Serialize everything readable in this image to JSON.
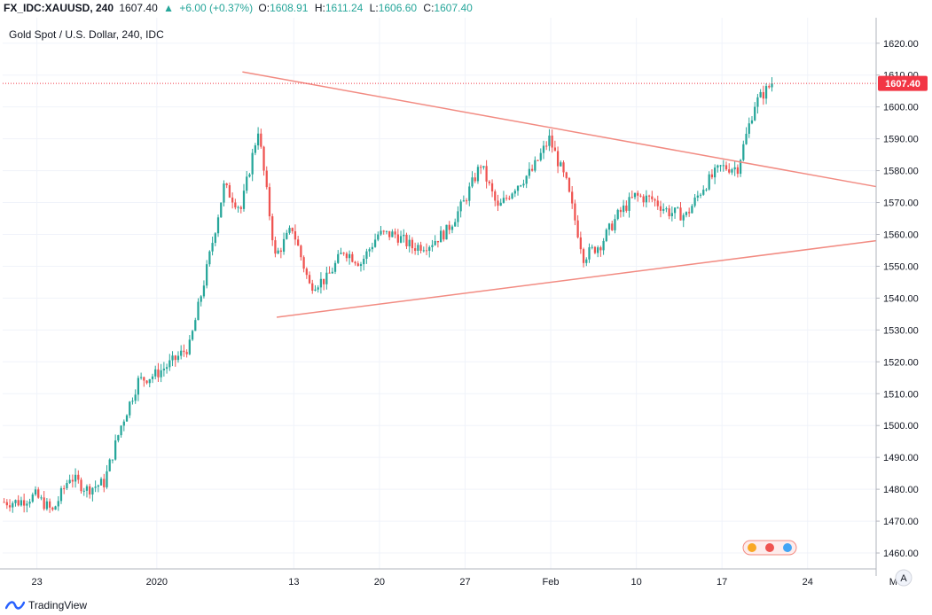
{
  "header": {
    "symbol": "FX_IDC:XAUUSD, 240",
    "last": "1607.40",
    "change_arrow": "▲",
    "change": "+6.00 (+0.37%)",
    "o_label": "O:",
    "o_value": "1608.91",
    "h_label": "H:",
    "h_value": "1611.24",
    "l_label": "L:",
    "l_value": "1606.60",
    "c_label": "C:",
    "c_value": "1607.40"
  },
  "chart_title": "Gold Spot / U.S. Dollar, 240, IDC",
  "price_label": "1607.40",
  "footer": {
    "brand": "TradingView"
  },
  "scale_mode": "A",
  "icons": {
    "logo": "tradingview-logo-icon",
    "scale": "auto-scale-icon",
    "events": "economic-events-icon"
  },
  "colors": {
    "up": "#26a69a",
    "down": "#ef5350",
    "trendline": "#f28b82",
    "last_price": "#f23645",
    "grid": "#f0f3fa"
  },
  "chart_data": {
    "type": "candlestick",
    "title": "Gold Spot / U.S. Dollar, 240, IDC",
    "ylim": [
      1455,
      1628
    ],
    "y_ticks": [
      1460,
      1470,
      1480,
      1490,
      1500,
      1510,
      1520,
      1530,
      1540,
      1550,
      1560,
      1570,
      1580,
      1590,
      1600,
      1610,
      1620
    ],
    "x_ticks": [
      "23",
      "2020",
      "13",
      "20",
      "27",
      "Feb",
      "10",
      "17",
      "24",
      "M"
    ],
    "x_start": "2019-12-19",
    "bars_per_day": 6,
    "trading_day_count": 45,
    "anchors": [
      [
        "2019-12-19",
        1476
      ],
      [
        "2019-12-20",
        1478
      ],
      [
        "2019-12-23",
        1473
      ],
      [
        "2019-12-24",
        1484
      ],
      [
        "2019-12-25",
        1480
      ],
      [
        "2019-12-26",
        1482
      ],
      [
        "2019-12-27",
        1500
      ],
      [
        "2019-12-30",
        1514
      ],
      [
        "2019-12-31",
        1516
      ],
      [
        "2020-01-01",
        1520
      ],
      [
        "2020-01-02",
        1525
      ],
      [
        "2020-01-03",
        1549
      ],
      [
        "2020-01-06",
        1575
      ],
      [
        "2020-01-07",
        1568
      ],
      [
        "2020-01-08",
        1593
      ],
      [
        "2020-01-09",
        1553
      ],
      [
        "2020-01-10",
        1562
      ],
      [
        "2020-01-13",
        1544
      ],
      [
        "2020-01-14",
        1546
      ],
      [
        "2020-01-15",
        1555
      ],
      [
        "2020-01-16",
        1551
      ],
      [
        "2020-01-17",
        1560
      ],
      [
        "2020-01-20",
        1560
      ],
      [
        "2020-01-21",
        1556
      ],
      [
        "2020-01-22",
        1557
      ],
      [
        "2020-01-23",
        1561
      ],
      [
        "2020-01-24",
        1570
      ],
      [
        "2020-01-27",
        1582
      ],
      [
        "2020-01-28",
        1568
      ],
      [
        "2020-01-29",
        1575
      ],
      [
        "2020-01-30",
        1580
      ],
      [
        "2020-01-31",
        1590
      ],
      [
        "2020-02-03",
        1576
      ],
      [
        "2020-02-04",
        1553
      ],
      [
        "2020-02-05",
        1557
      ],
      [
        "2020-02-06",
        1566
      ],
      [
        "2020-02-07",
        1572
      ],
      [
        "2020-02-10",
        1571
      ],
      [
        "2020-02-11",
        1567
      ],
      [
        "2020-02-12",
        1566
      ],
      [
        "2020-02-13",
        1575
      ],
      [
        "2020-02-14",
        1581
      ],
      [
        "2020-02-17",
        1581
      ],
      [
        "2020-02-18",
        1601
      ],
      [
        "2020-02-19",
        1607.4
      ]
    ],
    "trendlines": [
      {
        "name": "upper",
        "from": [
          "2020-01-08",
          1611
        ],
        "to": [
          "2020-02-28",
          1575
        ]
      },
      {
        "name": "lower",
        "from": [
          "2020-01-10",
          1534
        ],
        "to": [
          "2020-02-28",
          1558
        ]
      }
    ],
    "last_price": 1607.4,
    "grid": true,
    "legend": "none"
  }
}
